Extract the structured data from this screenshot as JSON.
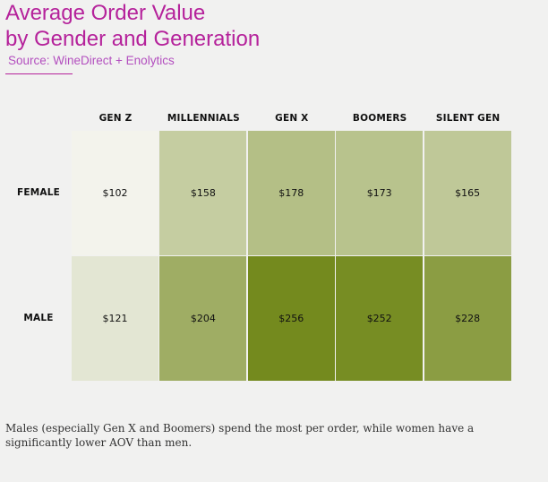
{
  "title_line1": "Average Order Value",
  "title_line2": "by Gender and Generation",
  "source": "Source: WineDirect + Enolytics",
  "footnote": "Males (especially Gen X and Boomers) spend the most per order, while women have a significantly lower AOV than men.",
  "colors": {
    "title": "#b5229b",
    "source": "#b34fbf",
    "scale_low": "#f3f3ec",
    "scale_high": "#748a1e"
  },
  "chart_data": {
    "type": "heatmap",
    "columns": [
      "GEN Z",
      "MILLENNIALS",
      "GEN X",
      "BOOMERS",
      "SILENT GEN"
    ],
    "rows": [
      "FEMALE",
      "MALE"
    ],
    "values": [
      [
        102,
        158,
        178,
        173,
        165
      ],
      [
        121,
        204,
        256,
        252,
        228
      ]
    ],
    "labels": [
      [
        "$102",
        "$158",
        "$178",
        "$173",
        "$165"
      ],
      [
        "$121",
        "$204",
        "$256",
        "$252",
        "$228"
      ]
    ]
  }
}
